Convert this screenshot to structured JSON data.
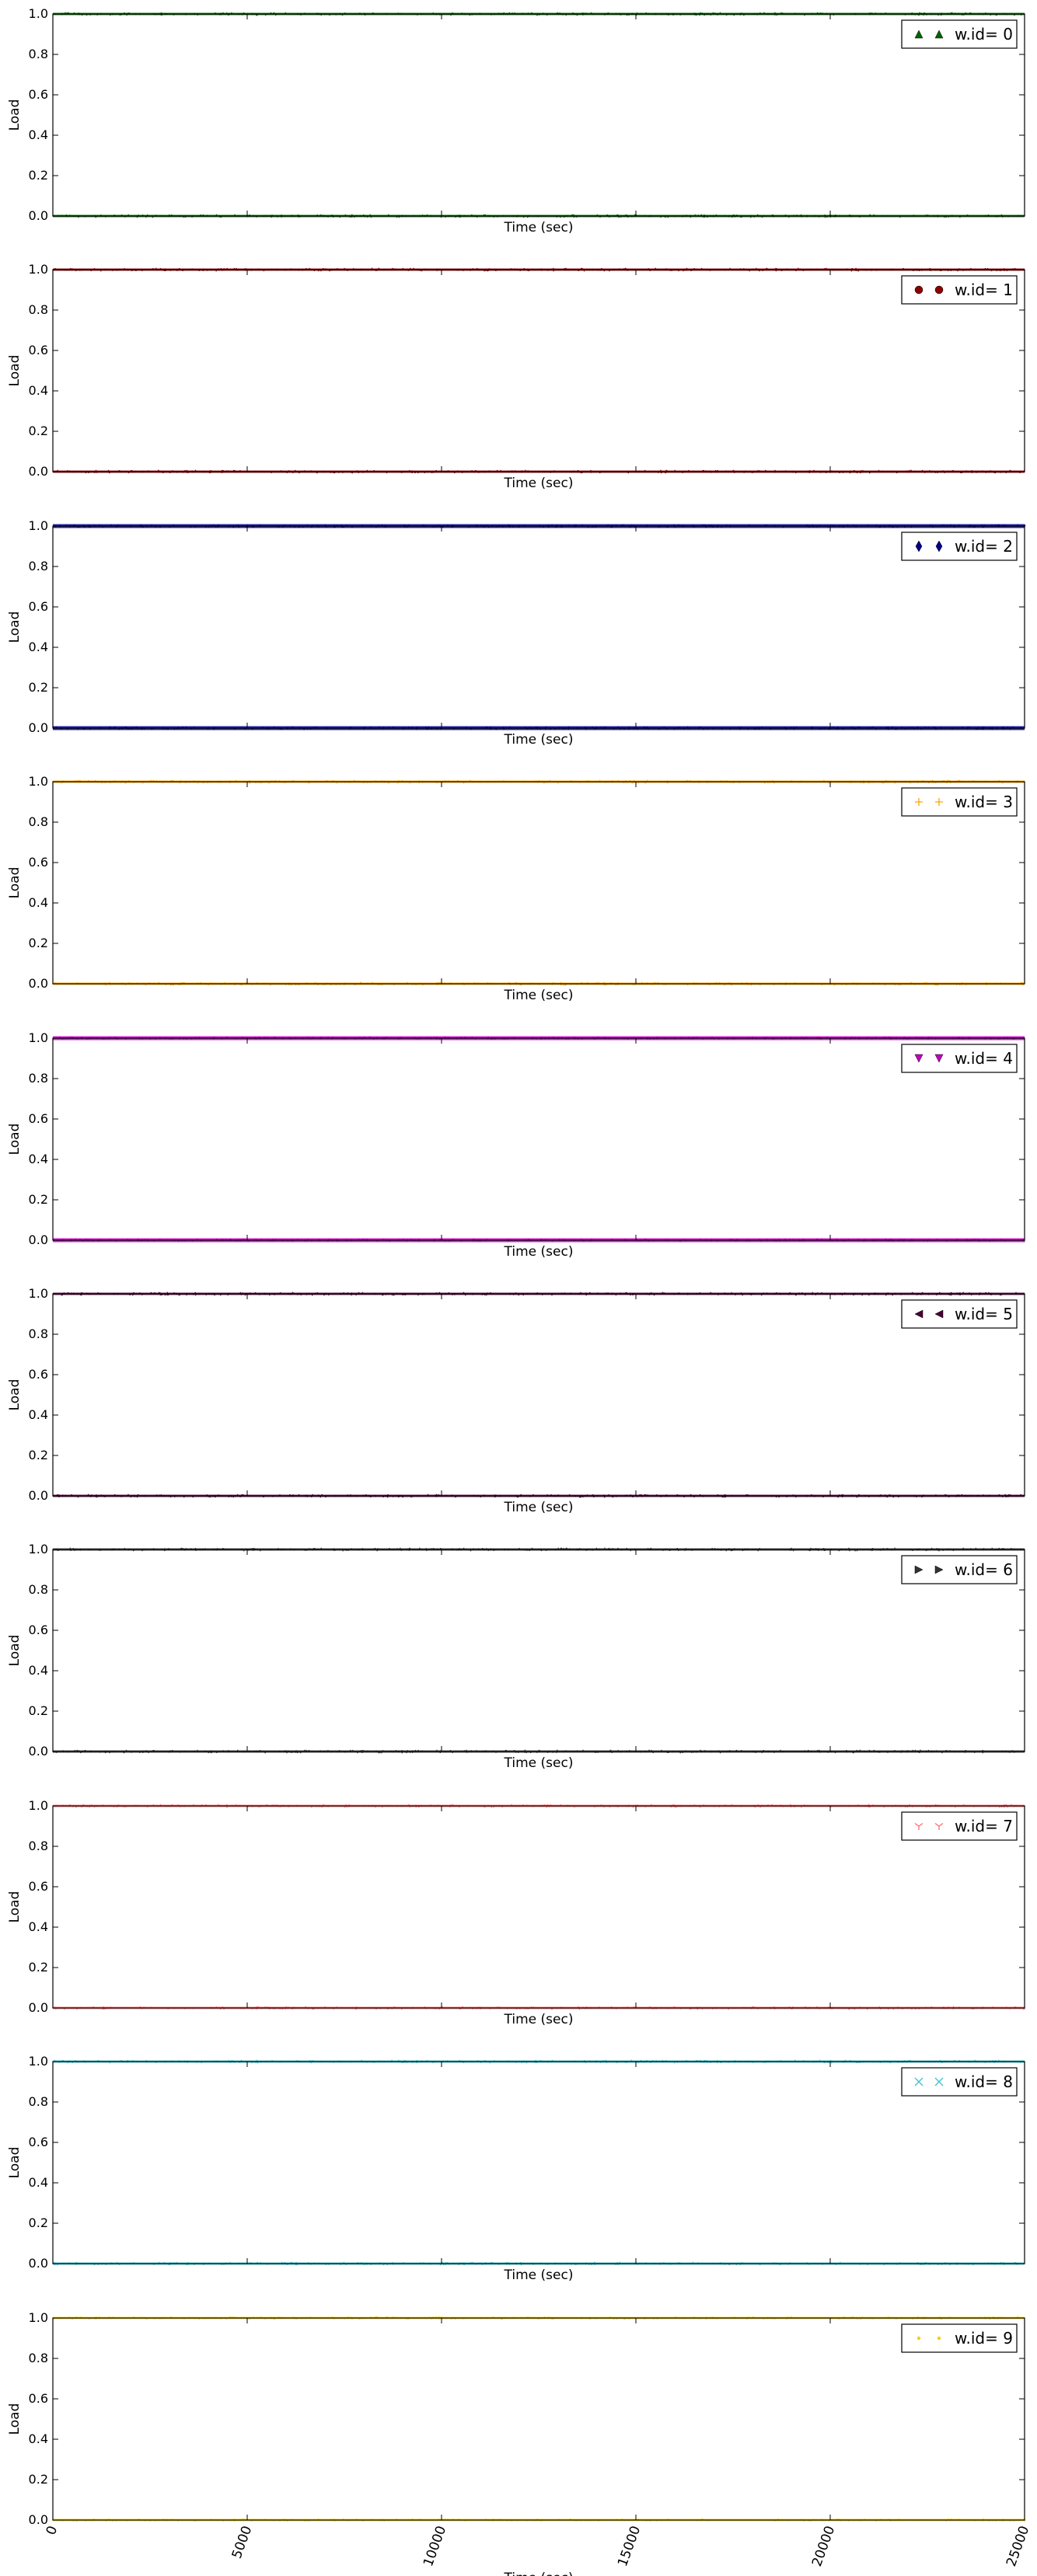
{
  "chart_data": [
    {
      "type": "scatter",
      "xlabel": "Time (sec)",
      "ylabel": "Load",
      "ylim": [
        0.0,
        1.0
      ],
      "xlim": [
        0,
        25000
      ],
      "yticks": [
        "0.0",
        "0.2",
        "0.4",
        "0.6",
        "0.8",
        "1.0"
      ],
      "legend": "w.id= 0",
      "legend_placement": "top-right",
      "marker": "triangle-up",
      "color": "#006400",
      "series": [
        {
          "name": "w.id= 0",
          "values": [
            0,
            1
          ]
        }
      ],
      "value_levels": [
        0,
        1
      ]
    },
    {
      "type": "scatter",
      "xlabel": "Time (sec)",
      "ylabel": "Load",
      "ylim": [
        0.0,
        1.0
      ],
      "xlim": [
        0,
        25000
      ],
      "yticks": [
        "0.0",
        "0.2",
        "0.4",
        "0.6",
        "0.8",
        "1.0"
      ],
      "legend": "w.id= 1",
      "legend_placement": "top-right",
      "marker": "circle",
      "color": "#8b0000",
      "series": [
        {
          "name": "w.id= 1",
          "values": [
            0,
            1
          ]
        }
      ],
      "value_levels": [
        0,
        1
      ]
    },
    {
      "type": "scatter",
      "xlabel": "Time (sec)",
      "ylabel": "Load",
      "ylim": [
        0.0,
        1.0
      ],
      "xlim": [
        0,
        25000
      ],
      "yticks": [
        "0.0",
        "0.2",
        "0.4",
        "0.6",
        "0.8",
        "1.0"
      ],
      "legend": "w.id= 2",
      "legend_placement": "top-right",
      "marker": "diamond",
      "color": "#00008b",
      "series": [
        {
          "name": "w.id= 2",
          "values": [
            0,
            1
          ]
        }
      ],
      "value_levels": [
        0,
        1
      ]
    },
    {
      "type": "scatter",
      "xlabel": "Time (sec)",
      "ylabel": "Load",
      "ylim": [
        0.0,
        1.0
      ],
      "xlim": [
        0,
        25000
      ],
      "yticks": [
        "0.0",
        "0.2",
        "0.4",
        "0.6",
        "0.8",
        "1.0"
      ],
      "legend": "w.id= 3",
      "legend_placement": "top-right",
      "marker": "plus",
      "color": "#ffa500",
      "series": [
        {
          "name": "w.id= 3",
          "values": [
            0,
            1
          ]
        }
      ],
      "value_levels": [
        0,
        1
      ]
    },
    {
      "type": "scatter",
      "xlabel": "Time (sec)",
      "ylabel": "Load",
      "ylim": [
        0.0,
        1.0
      ],
      "xlim": [
        0,
        25000
      ],
      "yticks": [
        "0.0",
        "0.2",
        "0.4",
        "0.6",
        "0.8",
        "1.0"
      ],
      "legend": "w.id= 4",
      "legend_placement": "top-right",
      "marker": "triangle-down",
      "color": "#c000c0",
      "series": [
        {
          "name": "w.id= 4",
          "values": [
            0,
            1
          ]
        }
      ],
      "value_levels": [
        0,
        1
      ]
    },
    {
      "type": "scatter",
      "xlabel": "Time (sec)",
      "ylabel": "Load",
      "ylim": [
        0.0,
        1.0
      ],
      "xlim": [
        0,
        25000
      ],
      "yticks": [
        "0.0",
        "0.2",
        "0.4",
        "0.6",
        "0.8",
        "1.0"
      ],
      "legend": "w.id= 5",
      "legend_placement": "top-right",
      "marker": "triangle-left",
      "color": "#4b0033",
      "series": [
        {
          "name": "w.id= 5",
          "values": [
            0,
            1
          ]
        }
      ],
      "value_levels": [
        0,
        1
      ]
    },
    {
      "type": "scatter",
      "xlabel": "Time (sec)",
      "ylabel": "Load",
      "ylim": [
        0.0,
        1.0
      ],
      "xlim": [
        0,
        25000
      ],
      "yticks": [
        "0.0",
        "0.2",
        "0.4",
        "0.6",
        "0.8",
        "1.0"
      ],
      "legend": "w.id= 6",
      "legend_placement": "top-right",
      "marker": "triangle-right",
      "color": "#333333",
      "series": [
        {
          "name": "w.id= 6",
          "values": [
            0,
            1
          ]
        }
      ],
      "value_levels": [
        0,
        1
      ]
    },
    {
      "type": "scatter",
      "xlabel": "Time (sec)",
      "ylabel": "Load",
      "ylim": [
        0.0,
        1.0
      ],
      "xlim": [
        0,
        25000
      ],
      "yticks": [
        "0.0",
        "0.2",
        "0.4",
        "0.6",
        "0.8",
        "1.0"
      ],
      "legend": "w.id= 7",
      "legend_placement": "top-right",
      "marker": "tri-down",
      "color": "#ff6b6b",
      "series": [
        {
          "name": "w.id= 7",
          "values": [
            0,
            1
          ]
        }
      ],
      "value_levels": [
        0,
        1
      ]
    },
    {
      "type": "scatter",
      "xlabel": "Time (sec)",
      "ylabel": "Load",
      "ylim": [
        0.0,
        1.0
      ],
      "xlim": [
        0,
        25000
      ],
      "yticks": [
        "0.0",
        "0.2",
        "0.4",
        "0.6",
        "0.8",
        "1.0"
      ],
      "legend": "w.id= 8",
      "legend_placement": "top-right",
      "marker": "x",
      "color": "#40c0d0",
      "series": [
        {
          "name": "w.id= 8",
          "values": [
            0,
            1
          ]
        }
      ],
      "value_levels": [
        0,
        1
      ]
    },
    {
      "type": "scatter",
      "xlabel": "Time (sec)",
      "ylabel": "Load",
      "ylim": [
        0.0,
        1.0
      ],
      "xlim": [
        0,
        25000
      ],
      "yticks": [
        "0.0",
        "0.2",
        "0.4",
        "0.6",
        "0.8",
        "1.0"
      ],
      "xticks": [
        "0",
        "5000",
        "10000",
        "15000",
        "20000",
        "25000"
      ],
      "legend": "w.id= 9",
      "legend_placement": "top-right",
      "marker": "point",
      "color": "#f5d020",
      "series": [
        {
          "name": "w.id= 9",
          "values": [
            0,
            1
          ]
        }
      ],
      "value_levels": [
        0,
        1
      ]
    }
  ]
}
